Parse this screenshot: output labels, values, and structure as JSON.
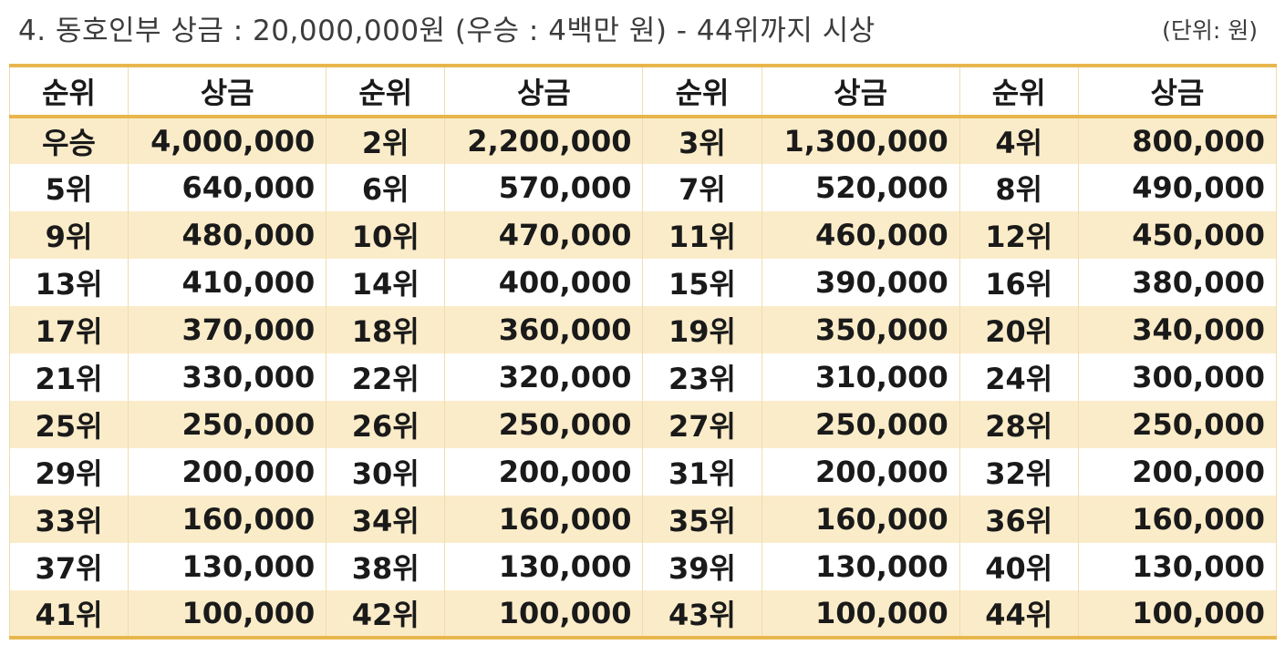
{
  "title": "4. 동호인부 상금 : 20,000,000원 (우승 : 4백만 원) - 44위까지 시상",
  "unit": "(단위: 원)",
  "header": [
    "순위",
    "상금",
    "순위",
    "상금",
    "순위",
    "상금",
    "순위",
    "상금"
  ],
  "rows": [
    [
      "우승",
      "4,000,000",
      "2위",
      "2,200,000",
      "3위",
      "1,300,000",
      "4위",
      "800,000"
    ],
    [
      "5위",
      "640,000",
      "6위",
      "570,000",
      "7위",
      "520,000",
      "8위",
      "490,000"
    ],
    [
      "9위",
      "480,000",
      "10위",
      "470,000",
      "11위",
      "460,000",
      "12위",
      "450,000"
    ],
    [
      "13위",
      "410,000",
      "14위",
      "400,000",
      "15위",
      "390,000",
      "16위",
      "380,000"
    ],
    [
      "17위",
      "370,000",
      "18위",
      "360,000",
      "19위",
      "350,000",
      "20위",
      "340,000"
    ],
    [
      "21위",
      "330,000",
      "22위",
      "320,000",
      "23위",
      "310,000",
      "24위",
      "300,000"
    ],
    [
      "25위",
      "250,000",
      "26위",
      "250,000",
      "27위",
      "250,000",
      "28위",
      "250,000"
    ],
    [
      "29위",
      "200,000",
      "30위",
      "200,000",
      "31위",
      "200,000",
      "32위",
      "200,000"
    ],
    [
      "33위",
      "160,000",
      "34위",
      "160,000",
      "35위",
      "160,000",
      "36위",
      "160,000"
    ],
    [
      "37위",
      "130,000",
      "38위",
      "130,000",
      "39위",
      "130,000",
      "40위",
      "130,000"
    ],
    [
      "41위",
      "100,000",
      "42위",
      "100,000",
      "43위",
      "100,000",
      "44위",
      "100,000"
    ]
  ],
  "colors": {
    "accent_border": "#e8b64c",
    "alt_row": "#fbecc9"
  }
}
